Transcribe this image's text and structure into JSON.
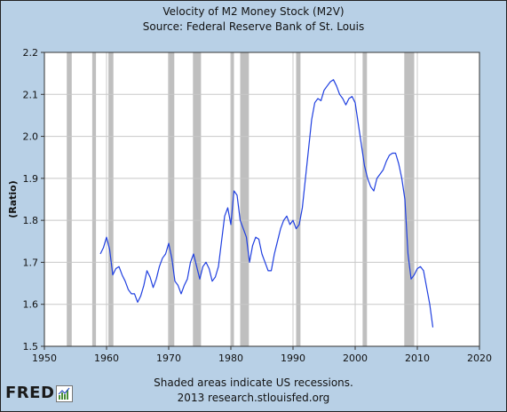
{
  "header": {
    "title": "Velocity of M2 Money Stock (M2V)",
    "subtitle": "Source: Federal Reserve Bank of St. Louis"
  },
  "footer": {
    "line1": "Shaded areas indicate US recessions.",
    "line2": "2013 research.stlouisfed.org"
  },
  "logo": {
    "text": "FRED",
    "badge_icon": "chart-badge-icon"
  },
  "colors": {
    "background": "#b8d0e6",
    "plot_background": "#ffffff",
    "line": "#1f3fe0",
    "recession": "#bfbfbf",
    "grid": "#c8c8c8"
  },
  "chart_data": {
    "type": "line",
    "title": "Velocity of M2 Money Stock (M2V)",
    "subtitle": "Source: Federal Reserve Bank of St. Louis",
    "xlabel": "",
    "ylabel": "(Ratio)",
    "xlim": [
      1950,
      2020
    ],
    "ylim": [
      1.5,
      2.2
    ],
    "xticks": [
      "1950",
      "1960",
      "1970",
      "1980",
      "1990",
      "2000",
      "2010",
      "2020"
    ],
    "yticks": [
      "1.5",
      "1.6",
      "1.7",
      "1.8",
      "1.9",
      "2.0",
      "2.1",
      "2.2"
    ],
    "grid": "both",
    "recessions": [
      [
        1953.6,
        1954.4
      ],
      [
        1957.7,
        1958.3
      ],
      [
        1960.3,
        1961.1
      ],
      [
        1969.9,
        1970.9
      ],
      [
        1973.9,
        1975.2
      ],
      [
        1980.0,
        1980.5
      ],
      [
        1981.5,
        1982.9
      ],
      [
        1990.5,
        1991.2
      ],
      [
        2001.2,
        2001.9
      ],
      [
        2007.9,
        2009.5
      ]
    ],
    "series": [
      {
        "x": [
          1959.0,
          1959.5,
          1960.0,
          1960.5,
          1961.0,
          1961.5,
          1962.0,
          1962.5,
          1963.0,
          1963.5,
          1964.0,
          1964.5,
          1965.0,
          1965.5,
          1966.0,
          1966.5,
          1967.0,
          1967.5,
          1968.0,
          1968.5,
          1969.0,
          1969.5,
          1970.0,
          1970.5,
          1971.0,
          1971.5,
          1972.0,
          1972.5,
          1973.0,
          1973.5,
          1974.0,
          1974.5,
          1975.0,
          1975.5,
          1976.0,
          1976.5,
          1977.0,
          1977.5,
          1978.0,
          1978.5,
          1979.0,
          1979.5,
          1980.0,
          1980.5,
          1981.0,
          1981.5,
          1982.0,
          1982.5,
          1983.0,
          1983.5,
          1984.0,
          1984.5,
          1985.0,
          1985.5,
          1986.0,
          1986.5,
          1987.0,
          1987.5,
          1988.0,
          1988.5,
          1989.0,
          1989.5,
          1990.0,
          1990.5,
          1991.0,
          1991.5,
          1992.0,
          1992.5,
          1993.0,
          1993.5,
          1994.0,
          1994.5,
          1995.0,
          1995.5,
          1996.0,
          1996.5,
          1997.0,
          1997.5,
          1998.0,
          1998.5,
          1999.0,
          1999.5,
          2000.0,
          2000.5,
          2001.0,
          2001.5,
          2002.0,
          2002.5,
          2003.0,
          2003.5,
          2004.0,
          2004.5,
          2005.0,
          2005.5,
          2006.0,
          2006.5,
          2007.0,
          2007.5,
          2008.0,
          2008.5,
          2009.0,
          2009.5,
          2010.0,
          2010.5,
          2011.0,
          2011.5,
          2012.0,
          2012.5
        ],
        "values": [
          1.72,
          1.735,
          1.76,
          1.73,
          1.67,
          1.685,
          1.69,
          1.67,
          1.655,
          1.635,
          1.625,
          1.625,
          1.605,
          1.62,
          1.645,
          1.68,
          1.665,
          1.64,
          1.66,
          1.69,
          1.71,
          1.72,
          1.745,
          1.71,
          1.655,
          1.645,
          1.625,
          1.645,
          1.66,
          1.7,
          1.72,
          1.69,
          1.66,
          1.69,
          1.7,
          1.685,
          1.655,
          1.665,
          1.69,
          1.75,
          1.81,
          1.83,
          1.79,
          1.87,
          1.86,
          1.8,
          1.78,
          1.76,
          1.7,
          1.74,
          1.76,
          1.755,
          1.72,
          1.7,
          1.68,
          1.68,
          1.72,
          1.75,
          1.78,
          1.8,
          1.81,
          1.79,
          1.8,
          1.78,
          1.79,
          1.83,
          1.9,
          1.97,
          2.04,
          2.08,
          2.09,
          2.085,
          2.11,
          2.12,
          2.13,
          2.135,
          2.12,
          2.1,
          2.09,
          2.075,
          2.09,
          2.095,
          2.08,
          2.03,
          1.98,
          1.93,
          1.9,
          1.88,
          1.87,
          1.9,
          1.91,
          1.92,
          1.94,
          1.955,
          1.96,
          1.96,
          1.935,
          1.9,
          1.85,
          1.72,
          1.66,
          1.67,
          1.685,
          1.69,
          1.68,
          1.64,
          1.6,
          1.545
        ]
      }
    ]
  }
}
